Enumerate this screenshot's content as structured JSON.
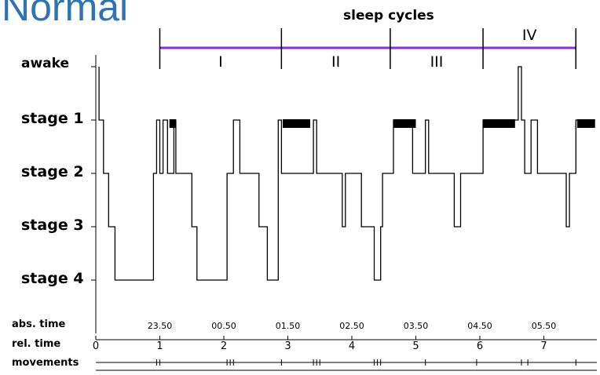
{
  "page": {
    "title": "Normal"
  },
  "chart_data": {
    "type": "line",
    "title": "sleep cycles",
    "stage_labels": [
      "awake",
      "stage 1",
      "stage 2",
      "stage 3",
      "stage 4"
    ],
    "row_labels": {
      "abs": "abs. time",
      "rel": "rel. time",
      "mov": "movements"
    },
    "abs_ticks": [
      "23.50",
      "00.50",
      "01.50",
      "02.50",
      "03.50",
      "04.50",
      "05.50"
    ],
    "rel_ticks": [
      "0",
      "1",
      "2",
      "3",
      "4",
      "5",
      "6",
      "7"
    ],
    "cycles": [
      {
        "label": "I",
        "start": 1.0,
        "end": 2.9
      },
      {
        "label": "II",
        "start": 2.9,
        "end": 4.6
      },
      {
        "label": "III",
        "start": 4.6,
        "end": 6.05
      },
      {
        "label": "IV",
        "start": 6.05,
        "end": 7.5
      }
    ],
    "cycle_color": "#8a2be2",
    "hypnogram": [
      [
        0.05,
        0
      ],
      [
        0.05,
        1
      ],
      [
        0.12,
        1
      ],
      [
        0.12,
        2
      ],
      [
        0.2,
        2
      ],
      [
        0.2,
        3
      ],
      [
        0.3,
        3
      ],
      [
        0.3,
        4
      ],
      [
        0.9,
        4
      ],
      [
        0.9,
        2
      ],
      [
        0.95,
        2
      ],
      [
        0.95,
        1
      ],
      [
        1.0,
        1
      ],
      [
        1.0,
        2
      ],
      [
        1.05,
        2
      ],
      [
        1.05,
        1
      ],
      [
        1.12,
        1
      ],
      [
        1.12,
        2
      ],
      [
        1.22,
        2
      ],
      [
        1.22,
        1
      ],
      [
        1.25,
        1
      ],
      [
        1.25,
        2
      ],
      [
        1.5,
        2
      ],
      [
        1.5,
        3
      ],
      [
        1.58,
        3
      ],
      [
        1.58,
        4
      ],
      [
        2.05,
        4
      ],
      [
        2.05,
        2
      ],
      [
        2.15,
        2
      ],
      [
        2.15,
        1
      ],
      [
        2.25,
        1
      ],
      [
        2.25,
        2
      ],
      [
        2.55,
        2
      ],
      [
        2.55,
        3
      ],
      [
        2.68,
        3
      ],
      [
        2.68,
        4
      ],
      [
        2.85,
        4
      ],
      [
        2.85,
        1
      ],
      [
        2.9,
        1
      ],
      [
        2.9,
        2
      ],
      [
        3.4,
        2
      ],
      [
        3.4,
        1
      ],
      [
        3.45,
        1
      ],
      [
        3.45,
        2
      ],
      [
        3.85,
        2
      ],
      [
        3.85,
        3
      ],
      [
        3.9,
        3
      ],
      [
        3.9,
        2
      ],
      [
        4.15,
        2
      ],
      [
        4.15,
        3
      ],
      [
        4.35,
        3
      ],
      [
        4.35,
        4
      ],
      [
        4.45,
        4
      ],
      [
        4.45,
        3
      ],
      [
        4.48,
        3
      ],
      [
        4.48,
        2
      ],
      [
        4.65,
        2
      ],
      [
        4.65,
        1
      ],
      [
        4.95,
        1
      ],
      [
        4.95,
        2
      ],
      [
        5.15,
        2
      ],
      [
        5.15,
        1
      ],
      [
        5.2,
        1
      ],
      [
        5.2,
        2
      ],
      [
        5.6,
        2
      ],
      [
        5.6,
        3
      ],
      [
        5.7,
        3
      ],
      [
        5.7,
        2
      ],
      [
        6.05,
        2
      ],
      [
        6.05,
        1
      ],
      [
        6.6,
        1
      ],
      [
        6.6,
        0
      ],
      [
        6.65,
        0
      ],
      [
        6.65,
        1
      ],
      [
        6.7,
        1
      ],
      [
        6.7,
        2
      ],
      [
        6.8,
        2
      ],
      [
        6.8,
        1
      ],
      [
        6.9,
        1
      ],
      [
        6.9,
        2
      ],
      [
        7.35,
        2
      ],
      [
        7.35,
        3
      ],
      [
        7.4,
        3
      ],
      [
        7.4,
        2
      ],
      [
        7.5,
        2
      ],
      [
        7.5,
        1
      ],
      [
        7.8,
        1
      ]
    ],
    "dream_bars": [
      [
        1.15,
        1.25
      ],
      [
        2.92,
        3.35
      ],
      [
        4.65,
        5.0
      ],
      [
        6.05,
        6.55
      ],
      [
        7.52,
        7.8
      ]
    ],
    "movements": [
      0.95,
      1.0,
      2.05,
      2.1,
      2.15,
      2.9,
      3.4,
      3.45,
      3.5,
      4.35,
      4.4,
      4.45,
      5.15,
      5.95,
      6.65,
      6.75,
      7.5
    ]
  }
}
